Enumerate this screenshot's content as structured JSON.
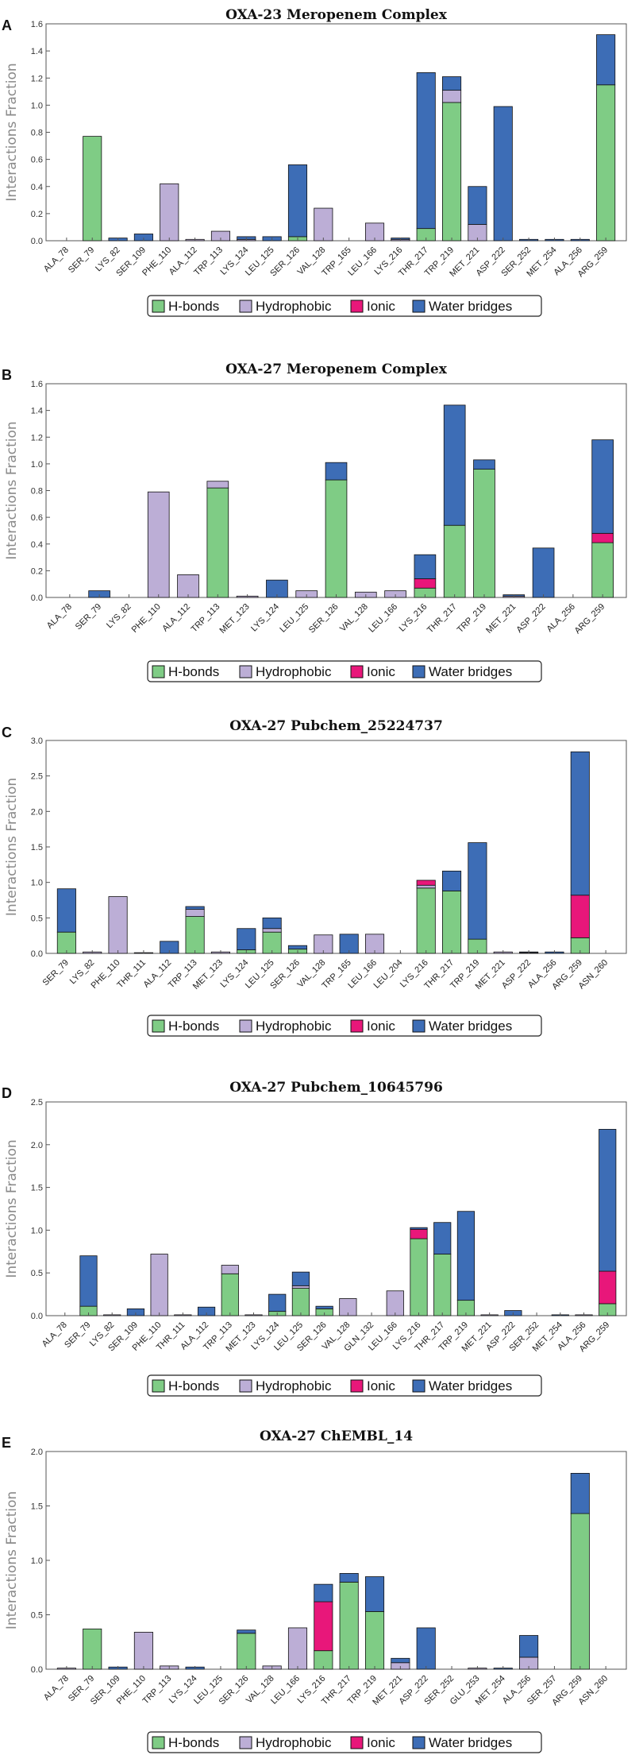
{
  "colors": {
    "H-bonds": "#7fcc85",
    "Hydrophobic": "#bcaed6",
    "Ionic": "#e8177a",
    "Water bridges": "#3d6db6"
  },
  "legend_labels": [
    "H-bonds",
    "Hydrophobic",
    "Ionic",
    "Water bridges"
  ],
  "chart_data": [
    {
      "type": "bar",
      "panel": "A",
      "title": "OXA-23 Meropenem Complex",
      "ylabel": "Interactions Fraction",
      "ylim": [
        0,
        1.6
      ],
      "yticks": [
        "0.0",
        "0.2",
        "0.4",
        "0.6",
        "0.8",
        "1.0",
        "1.2",
        "1.4",
        "1.6"
      ],
      "categories": [
        "ALA_78",
        "SER_79",
        "LYS_82",
        "SER_109",
        "PHE_110",
        "ALA_112",
        "TRP_113",
        "LYS_124",
        "LEU_125",
        "SER_126",
        "VAL_128",
        "TRP_165",
        "LEU_166",
        "LYS_216",
        "THR_217",
        "TRP_219",
        "MET_221",
        "ASP_222",
        "SER_252",
        "MET_254",
        "ALA_256",
        "ARG_259"
      ],
      "series": [
        {
          "name": "H-bonds",
          "values": [
            0,
            0.77,
            0,
            0,
            0,
            0,
            0,
            0,
            0,
            0.03,
            0,
            0,
            0,
            0,
            0.09,
            1.02,
            0,
            0,
            0,
            0,
            0,
            1.15
          ]
        },
        {
          "name": "Hydrophobic",
          "values": [
            0,
            0,
            0,
            0,
            0.42,
            0.01,
            0.07,
            0.01,
            0,
            0,
            0.24,
            0,
            0.13,
            0.01,
            0,
            0.09,
            0.12,
            0,
            0,
            0,
            0,
            0
          ]
        },
        {
          "name": "Ionic",
          "values": [
            0,
            0,
            0,
            0,
            0,
            0,
            0,
            0,
            0,
            0,
            0,
            0,
            0,
            0,
            0,
            0,
            0,
            0,
            0,
            0,
            0,
            0
          ]
        },
        {
          "name": "Water bridges",
          "values": [
            0,
            0,
            0.02,
            0.05,
            0,
            0,
            0,
            0.02,
            0.03,
            0.53,
            0,
            0,
            0,
            0.01,
            1.15,
            0.1,
            0.28,
            0.99,
            0.01,
            0.01,
            0.01,
            0.37
          ]
        }
      ]
    },
    {
      "type": "bar",
      "panel": "B",
      "title": "OXA-27 Meropenem Complex",
      "ylabel": "Interactions Fraction",
      "ylim": [
        0,
        1.6
      ],
      "yticks": [
        "0.0",
        "0.2",
        "0.4",
        "0.6",
        "0.8",
        "1.0",
        "1.2",
        "1.4",
        "1.6"
      ],
      "categories": [
        "ALA_78",
        "SER_79",
        "LYS_82",
        "PHE_110",
        "ALA_112",
        "TRP_113",
        "MET_123",
        "LYS_124",
        "LEU_125",
        "SER_126",
        "VAL_128",
        "LEU_166",
        "LYS_216",
        "THR_217",
        "TRP_219",
        "MET_221",
        "ASP_222",
        "ALA_256",
        "ARG_259"
      ],
      "series": [
        {
          "name": "H-bonds",
          "values": [
            0,
            0,
            0,
            0,
            0,
            0.82,
            0,
            0,
            0,
            0.88,
            0,
            0,
            0.07,
            0.54,
            0.96,
            0,
            0,
            0,
            0.41
          ]
        },
        {
          "name": "Hydrophobic",
          "values": [
            0,
            0,
            0,
            0.79,
            0.17,
            0.05,
            0.01,
            0,
            0.05,
            0,
            0.04,
            0.05,
            0,
            0,
            0,
            0.01,
            0,
            0,
            0
          ]
        },
        {
          "name": "Ionic",
          "values": [
            0,
            0,
            0,
            0,
            0,
            0,
            0,
            0,
            0,
            0,
            0,
            0,
            0.07,
            0,
            0,
            0,
            0,
            0,
            0.07
          ]
        },
        {
          "name": "Water bridges",
          "values": [
            0,
            0.05,
            0,
            0,
            0,
            0,
            0,
            0.13,
            0,
            0.13,
            0,
            0,
            0.18,
            0.9,
            0.07,
            0.01,
            0.37,
            0,
            0.7
          ]
        }
      ]
    },
    {
      "type": "bar",
      "panel": "C",
      "title": "OXA-27 Pubchem_25224737",
      "ylabel": "Interactions Fraction",
      "ylim": [
        0,
        3.0
      ],
      "yticks": [
        "0.0",
        "0.5",
        "1.0",
        "1.5",
        "2.0",
        "2.5",
        "3.0"
      ],
      "categories": [
        "SER_79",
        "LYS_82",
        "PHE_110",
        "THR_111",
        "ALA_112",
        "TRP_113",
        "MET_123",
        "LYS_124",
        "LEU_125",
        "SER_126",
        "VAL_128",
        "TRP_165",
        "LEU_166",
        "LEU_204",
        "LYS_216",
        "THR_217",
        "TRP_219",
        "MET_221",
        "ASP_222",
        "ALA_256",
        "ARG_259",
        "ASN_260"
      ],
      "series": [
        {
          "name": "H-bonds",
          "values": [
            0.3,
            0,
            0,
            0,
            0,
            0.52,
            0,
            0.05,
            0.3,
            0.06,
            0,
            0,
            0,
            0,
            0.92,
            0.88,
            0.2,
            0,
            0,
            0,
            0.22,
            0
          ]
        },
        {
          "name": "Hydrophobic",
          "values": [
            0,
            0.02,
            0.8,
            0.01,
            0,
            0.1,
            0.02,
            0,
            0.05,
            0,
            0.26,
            0,
            0.27,
            0,
            0.04,
            0,
            0,
            0.02,
            0.01,
            0,
            0,
            0
          ]
        },
        {
          "name": "Ionic",
          "values": [
            0,
            0,
            0,
            0,
            0,
            0,
            0,
            0,
            0,
            0,
            0,
            0,
            0,
            0,
            0.07,
            0,
            0,
            0,
            0,
            0,
            0.6,
            0
          ]
        },
        {
          "name": "Water bridges",
          "values": [
            0.61,
            0,
            0,
            0,
            0.17,
            0.04,
            0,
            0.3,
            0.15,
            0.05,
            0,
            0.27,
            0,
            0,
            0,
            0.28,
            1.36,
            0,
            0.01,
            0.02,
            2.02,
            0
          ]
        }
      ]
    },
    {
      "type": "bar",
      "panel": "D",
      "title": "OXA-27 Pubchem_10645796",
      "ylabel": "Interactions Fraction",
      "ylim": [
        0,
        2.5
      ],
      "yticks": [
        "0.0",
        "0.5",
        "1.0",
        "1.5",
        "2.0",
        "2.5"
      ],
      "categories": [
        "ALA_78",
        "SER_79",
        "LYS_82",
        "SER_109",
        "PHE_110",
        "THR_111",
        "ALA_112",
        "TRP_113",
        "MET_123",
        "LYS_124",
        "LEU_125",
        "SER_126",
        "VAL_128",
        "GLN_132",
        "LEU_166",
        "LYS_216",
        "THR_217",
        "TRP_219",
        "MET_221",
        "ASP_222",
        "SER_252",
        "MET_254",
        "ALA_256",
        "ARG_259"
      ],
      "series": [
        {
          "name": "H-bonds",
          "values": [
            0,
            0.11,
            0,
            0,
            0,
            0,
            0,
            0.49,
            0,
            0.05,
            0.32,
            0.08,
            0,
            0,
            0,
            0.9,
            0.72,
            0.18,
            0,
            0,
            0,
            0,
            0,
            0.14
          ]
        },
        {
          "name": "Hydrophobic",
          "values": [
            0,
            0,
            0.01,
            0,
            0.72,
            0.01,
            0,
            0.1,
            0.01,
            0,
            0.03,
            0,
            0.2,
            0,
            0.29,
            0,
            0,
            0,
            0.01,
            0,
            0,
            0,
            0.01,
            0
          ]
        },
        {
          "name": "Ionic",
          "values": [
            0,
            0,
            0,
            0,
            0,
            0,
            0,
            0,
            0,
            0,
            0,
            0,
            0,
            0,
            0,
            0.11,
            0,
            0,
            0,
            0,
            0,
            0,
            0,
            0.38
          ]
        },
        {
          "name": "Water bridges",
          "values": [
            0,
            0.59,
            0,
            0.08,
            0,
            0,
            0.1,
            0,
            0,
            0.2,
            0.16,
            0.03,
            0,
            0,
            0,
            0.02,
            0.37,
            1.04,
            0,
            0.06,
            0,
            0.01,
            0,
            1.66
          ]
        }
      ]
    },
    {
      "type": "bar",
      "panel": "E",
      "title": "OXA-27 ChEMBL_14",
      "ylabel": "Interactions Fraction",
      "ylim": [
        0,
        2.0
      ],
      "yticks": [
        "0.0",
        "0.5",
        "1.0",
        "1.5",
        "2.0"
      ],
      "categories": [
        "ALA_78",
        "SER_79",
        "SER_109",
        "PHE_110",
        "TRP_113",
        "LYS_124",
        "LEU_125",
        "SER_126",
        "VAL_128",
        "LEU_166",
        "LYS_216",
        "THR_217",
        "TRP_219",
        "MET_221",
        "ASP_222",
        "SER_252",
        "GLU_253",
        "MET_254",
        "ALA_256",
        "SER_257",
        "ARG_259",
        "ASN_260"
      ],
      "series": [
        {
          "name": "H-bonds",
          "values": [
            0,
            0.37,
            0,
            0,
            0,
            0,
            0,
            0.33,
            0,
            0,
            0.17,
            0.8,
            0.53,
            0,
            0,
            0,
            0,
            0,
            0,
            0,
            1.43,
            0
          ]
        },
        {
          "name": "Hydrophobic",
          "values": [
            0.01,
            0,
            0,
            0.34,
            0.03,
            0,
            0,
            0,
            0.03,
            0.38,
            0,
            0,
            0,
            0.06,
            0,
            0,
            0.01,
            0,
            0.11,
            0,
            0,
            0
          ]
        },
        {
          "name": "Ionic",
          "values": [
            0,
            0,
            0,
            0,
            0,
            0,
            0,
            0,
            0,
            0,
            0.45,
            0,
            0,
            0,
            0,
            0,
            0,
            0,
            0,
            0,
            0,
            0
          ]
        },
        {
          "name": "Water bridges",
          "values": [
            0,
            0,
            0.02,
            0,
            0,
            0.02,
            0,
            0.03,
            0,
            0,
            0.16,
            0.08,
            0.32,
            0.04,
            0.38,
            0,
            0,
            0.01,
            0.2,
            0,
            0.37,
            0
          ]
        }
      ]
    }
  ]
}
